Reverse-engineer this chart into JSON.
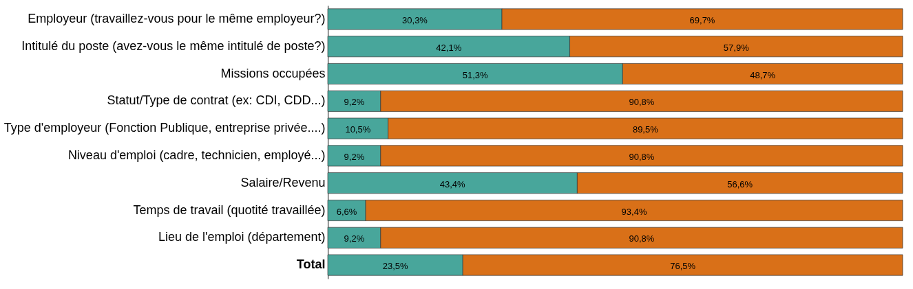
{
  "chart_data": {
    "type": "bar",
    "orientation": "horizontal",
    "stacked": true,
    "categories": [
      "Employeur (travaillez-vous pour le même employeur?)",
      "Intitulé du poste (avez-vous le même intitulé de poste?)",
      "Missions occupées",
      "Statut/Type de contrat (ex: CDI, CDD...)",
      "Type d'employeur (Fonction Publique, entreprise privée....)",
      "Niveau d'emploi (cadre, technicien, employé...)",
      "Salaire/Revenu",
      "Temps de travail (quotité travaillée)",
      "Lieu de l'emploi (département)",
      "Total"
    ],
    "series": [
      {
        "color": "#48a69b",
        "values": [
          30.3,
          42.1,
          51.3,
          9.2,
          10.5,
          9.2,
          43.4,
          6.6,
          9.2,
          23.5
        ],
        "value_labels": [
          "30,3%",
          "42,1%",
          "51,3%",
          "9,2%",
          "10,5%",
          "9,2%",
          "43,4%",
          "6,6%",
          "9,2%",
          "23,5%"
        ]
      },
      {
        "color": "#d97018",
        "values": [
          69.7,
          57.9,
          48.7,
          90.8,
          89.5,
          90.8,
          56.6,
          93.4,
          90.8,
          76.5
        ],
        "value_labels": [
          "69,7%",
          "57,9%",
          "48,7%",
          "90,8%",
          "89,5%",
          "90,8%",
          "56,6%",
          "93,4%",
          "90,8%",
          "76,5%"
        ]
      }
    ]
  }
}
